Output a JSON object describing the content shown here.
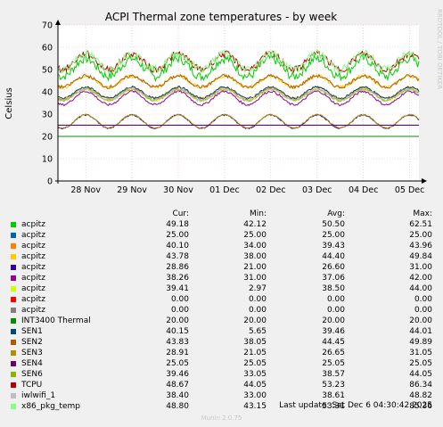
{
  "chart_data": {
    "type": "line",
    "title": "ACPI Thermal zone temperatures - by week",
    "ylabel": "Celsius",
    "ylim": [
      0,
      70
    ],
    "yticks": [
      0,
      10,
      20,
      30,
      40,
      50,
      60,
      70
    ],
    "xlim": [
      0,
      7.8
    ],
    "xticks": [
      {
        "label": "28 Nov",
        "at": 0.6
      },
      {
        "label": "29 Nov",
        "at": 1.6
      },
      {
        "label": "30 Nov",
        "at": 2.6
      },
      {
        "label": "01 Dec",
        "at": 3.6
      },
      {
        "label": "02 Dec",
        "at": 4.6
      },
      {
        "label": "03 Dec",
        "at": 5.6
      },
      {
        "label": "04 Dec",
        "at": 6.6
      },
      {
        "label": "05 Dec",
        "at": 7.6
      }
    ],
    "grid": true,
    "series": [
      {
        "name": "acpitz",
        "color": "#00cc00",
        "cur": "49.18",
        "min": "42.12",
        "avg": "50.50",
        "max": "62.51",
        "base": 50.5,
        "amp": 4,
        "noise": 4
      },
      {
        "name": "acpitz",
        "color": "#0066b3",
        "cur": "25.00",
        "min": "25.00",
        "avg": "25.00",
        "max": "25.00",
        "base": 25,
        "amp": 0,
        "noise": 0
      },
      {
        "name": "acpitz",
        "color": "#ff8000",
        "cur": "40.10",
        "min": "34.00",
        "avg": "39.43",
        "max": "43.96",
        "base": 39.4,
        "amp": 2.5,
        "noise": 1
      },
      {
        "name": "acpitz",
        "color": "#ffcc00",
        "cur": "43.78",
        "min": "38.00",
        "avg": "44.40",
        "max": "49.84",
        "base": 44.4,
        "amp": 2.5,
        "noise": 1.5
      },
      {
        "name": "acpitz",
        "color": "#330099",
        "cur": "28.86",
        "min": "21.00",
        "avg": "26.60",
        "max": "31.00",
        "base": 26.6,
        "amp": 3,
        "noise": 0.6
      },
      {
        "name": "acpitz",
        "color": "#990099",
        "cur": "38.26",
        "min": "31.00",
        "avg": "37.06",
        "max": "42.00",
        "base": 37.1,
        "amp": 3,
        "noise": 1
      },
      {
        "name": "acpitz",
        "color": "#ccff00",
        "cur": "39.41",
        "min": "2.97",
        "avg": "38.50",
        "max": "44.00",
        "base": 38.5,
        "amp": 2.5,
        "noise": 1
      },
      {
        "name": "acpitz",
        "color": "#ff0000",
        "cur": "0.00",
        "min": "0.00",
        "avg": "0.00",
        "max": "0.00",
        "base": 0,
        "amp": 0,
        "noise": 0
      },
      {
        "name": "acpitz",
        "color": "#808080",
        "cur": "0.00",
        "min": "0.00",
        "avg": "0.00",
        "max": "0.00",
        "base": 0,
        "amp": 0,
        "noise": 0
      },
      {
        "name": "INT3400 Thermal",
        "color": "#008f00",
        "cur": "20.00",
        "min": "20.00",
        "avg": "20.00",
        "max": "20.00",
        "base": 20,
        "amp": 0,
        "noise": 0
      },
      {
        "name": "SEN1",
        "color": "#00487d",
        "cur": "40.15",
        "min": "5.65",
        "avg": "39.46",
        "max": "44.01",
        "base": 39.5,
        "amp": 2.5,
        "noise": 1
      },
      {
        "name": "SEN2",
        "color": "#b35a00",
        "cur": "43.83",
        "min": "38.05",
        "avg": "44.45",
        "max": "49.89",
        "base": 44.5,
        "amp": 2.5,
        "noise": 1.5
      },
      {
        "name": "SEN3",
        "color": "#b38f00",
        "cur": "28.91",
        "min": "21.05",
        "avg": "26.65",
        "max": "31.05",
        "base": 26.7,
        "amp": 3,
        "noise": 0.6
      },
      {
        "name": "SEN4",
        "color": "#6b006b",
        "cur": "25.05",
        "min": "25.05",
        "avg": "25.05",
        "max": "25.05",
        "base": 25.05,
        "amp": 0,
        "noise": 0
      },
      {
        "name": "SEN6",
        "color": "#8fb300",
        "cur": "39.46",
        "min": "33.05",
        "avg": "38.57",
        "max": "44.05",
        "base": 38.6,
        "amp": 2.5,
        "noise": 1
      },
      {
        "name": "TCPU",
        "color": "#b30000",
        "cur": "48.67",
        "min": "44.05",
        "avg": "53.23",
        "max": "86.34",
        "base": 53.2,
        "amp": 3.5,
        "noise": 3
      },
      {
        "name": "iwlwifi_1",
        "color": "#bebebe",
        "cur": "38.40",
        "min": "33.00",
        "avg": "38.61",
        "max": "48.82",
        "base": 38.6,
        "amp": 2.5,
        "noise": 1.2
      },
      {
        "name": "x86_pkg_temp",
        "color": "#80ff80",
        "cur": "48.80",
        "min": "43.15",
        "avg": "53.31",
        "max": "85.36",
        "base": 53.3,
        "amp": 3.5,
        "noise": 3.5
      }
    ]
  },
  "legend_headers": {
    "cur": "Cur:",
    "min": "Min:",
    "avg": "Avg:",
    "max": "Max:"
  },
  "last_update": "Last update: Sat Dec  6 04:30:42 2025",
  "footer": "Munin 2.0.75",
  "side_label": "RRDTOOL / TOBI OETIKER"
}
